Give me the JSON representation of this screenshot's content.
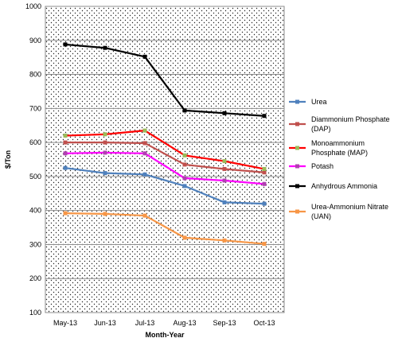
{
  "chart_data": {
    "type": "line",
    "title": "",
    "xlabel": "Month-Year",
    "ylabel": "$/Ton",
    "ylim": [
      100,
      1000
    ],
    "yticks": [
      100,
      200,
      300,
      400,
      500,
      600,
      700,
      800,
      900,
      1000
    ],
    "grid": true,
    "legend_position": "right",
    "categories": [
      "May-13",
      "Jun-13",
      "Jul-13",
      "Aug-13",
      "Sep-13",
      "Oct-13"
    ],
    "series": [
      {
        "name": "Urea",
        "color": "#4F81BD",
        "values": [
          525,
          510,
          506,
          472,
          424,
          420
        ]
      },
      {
        "name": "Diammonium Phosphate (DAP)",
        "color": "#C0504D",
        "values": [
          600,
          600,
          598,
          535,
          522,
          512
        ]
      },
      {
        "name": "Monoammonium Phosphate (MAP)",
        "color": "#FF0000",
        "marker_color": "#9BBB59",
        "values": [
          620,
          624,
          635,
          562,
          545,
          522
        ]
      },
      {
        "name": "Potash",
        "color": "#FF00FF",
        "marker_color": "#B040B0",
        "values": [
          568,
          570,
          568,
          495,
          488,
          478
        ]
      },
      {
        "name": "Anhydrous Ammonia",
        "color": "#000000",
        "values": [
          888,
          878,
          852,
          694,
          686,
          678
        ]
      },
      {
        "name": "Urea-Ammonium Nitrate (UAN)",
        "color": "#F79646",
        "values": [
          392,
          390,
          385,
          320,
          312,
          302
        ]
      }
    ],
    "legend_lines": [
      [
        "Urea"
      ],
      [
        "Diammonium Phosphate",
        "(DAP)"
      ],
      [
        "Monoammonium",
        "Phosphate (MAP)"
      ],
      [
        "Potash"
      ],
      [
        "Anhydrous Ammonia"
      ],
      [
        "Urea-Ammonium Nitrate",
        "(UAN)"
      ]
    ]
  }
}
